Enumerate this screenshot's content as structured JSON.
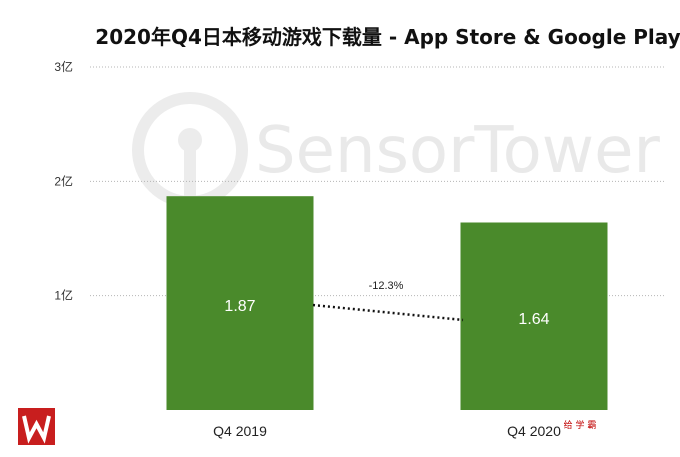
{
  "chart_data": {
    "type": "bar",
    "title": "2020年Q4日本移动游戏下载量 - App Store & Google Play",
    "categories": [
      "Q4 2019",
      "Q4 2020"
    ],
    "values": [
      1.87,
      1.64
    ],
    "value_labels": [
      "1.87",
      "1.64"
    ],
    "ylim": [
      0,
      3
    ],
    "yticks": [
      {
        "value": 1,
        "label": "1亿"
      },
      {
        "value": 2,
        "label": "2亿"
      },
      {
        "value": 3,
        "label": "3亿"
      }
    ],
    "change_annotation": "-12.3%",
    "grid": true,
    "bar_color": "#4a8a2b"
  },
  "watermark": "SensorTower",
  "corner_text": "给 学 霸"
}
